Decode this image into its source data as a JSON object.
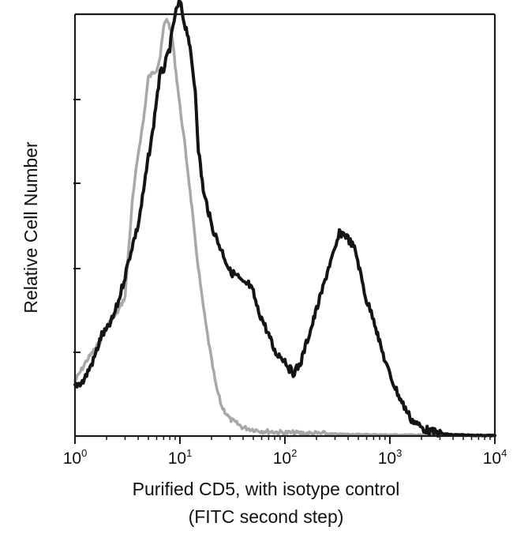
{
  "chart_data": {
    "type": "line",
    "title": "",
    "xlabel": "Purified CD5, with isotype control",
    "xlabel_line2": "(FITC second step)",
    "ylabel": "Relative Cell Number",
    "x_scale": "log",
    "xlim": [
      1,
      10000
    ],
    "ylim": [
      0,
      100
    ],
    "x_ticks": [
      {
        "value": 1,
        "base": "10",
        "exp": "0"
      },
      {
        "value": 10,
        "base": "10",
        "exp": "1"
      },
      {
        "value": 100,
        "base": "10",
        "exp": "2"
      },
      {
        "value": 1000,
        "base": "10",
        "exp": "3"
      },
      {
        "value": 10000,
        "base": "10",
        "exp": "4"
      }
    ],
    "y_tick_labels": "none",
    "grid": false,
    "legend": "none",
    "series": [
      {
        "role": "isotype-control",
        "color": "#a8a8a8",
        "x": [
          1.0,
          1.3,
          1.7,
          2.0,
          2.5,
          3.0,
          3.5,
          4.0,
          4.5,
          5.0,
          5.5,
          6.0,
          6.5,
          7.0,
          7.5,
          8.0,
          8.5,
          9.0,
          9.5,
          10.0,
          11.0,
          12.0,
          13.0,
          14.0,
          16.0,
          18.0,
          20.0,
          22.0,
          25.0,
          30.0,
          40.0,
          60.0,
          100.0,
          300.0,
          1000.0,
          10000.0
        ],
        "y": [
          13,
          18,
          22,
          26,
          29,
          33,
          55,
          67,
          75,
          85,
          86,
          87,
          90,
          97,
          99,
          97,
          94,
          88,
          83,
          78,
          70,
          62,
          54,
          46,
          34,
          25,
          18,
          12,
          7,
          4,
          2,
          1.2,
          0.8,
          0.5,
          0.3,
          0.2
        ]
      },
      {
        "role": "CD5",
        "color": "#141414",
        "x": [
          1.0,
          1.2,
          1.5,
          1.8,
          2.0,
          2.3,
          2.6,
          3.0,
          3.5,
          4.0,
          4.5,
          5.0,
          5.5,
          6.0,
          6.5,
          7.0,
          8.0,
          9.0,
          10.0,
          11.0,
          12.0,
          13.0,
          14.0,
          15.0,
          16.0,
          17.0,
          18.0,
          20.0,
          23.0,
          26.0,
          30.0,
          35.0,
          40.0,
          45.0,
          50.0,
          55.0,
          60.0,
          70.0,
          80.0,
          90.0,
          100.0,
          110.0,
          120.0,
          140.0,
          160.0,
          180.0,
          200.0,
          230.0,
          260.0,
          300.0,
          330.0,
          370.0,
          420.0,
          470.0,
          530.0,
          600.0,
          700.0,
          800.0,
          950.0,
          1100.0,
          1300.0,
          1600.0,
          2000.0,
          2500.0,
          3000.0,
          4000.0,
          6000.0,
          10000.0
        ],
        "y": [
          12,
          13,
          18,
          24,
          25,
          28,
          32,
          38,
          45,
          50,
          58,
          66,
          72,
          80,
          86,
          87,
          92,
          100,
          103,
          98,
          95,
          88,
          82,
          68,
          62,
          57,
          55,
          50,
          46,
          43,
          39,
          38,
          36,
          36,
          34,
          30,
          28,
          24,
          20,
          19,
          18,
          16,
          15,
          17,
          22,
          26,
          30,
          35,
          40,
          44,
          48,
          48,
          46,
          44,
          38,
          32,
          28,
          22,
          16,
          12,
          8,
          4,
          2,
          1,
          0.6,
          0.3,
          0.2,
          0.1
        ]
      }
    ]
  }
}
